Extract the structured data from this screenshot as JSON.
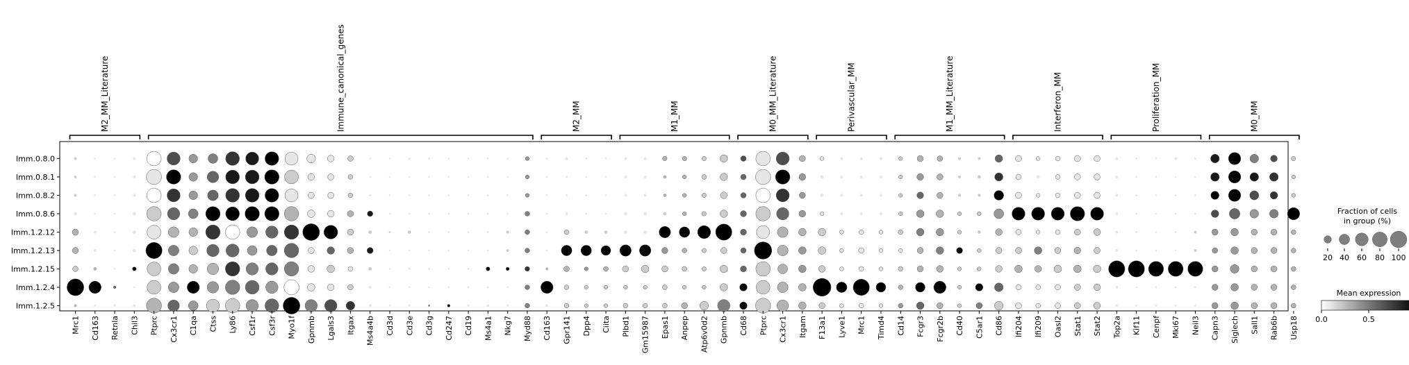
{
  "chart_data": {
    "type": "dotplot",
    "title": "",
    "xlabel": "",
    "ylabel": "",
    "colormap": "Greys",
    "rows": [
      "Imm.0.8.0",
      "Imm.0.8.1",
      "Imm.0.8.2",
      "Imm.0.8.6",
      "Imm.1.2.12",
      "Imm.1.2.13",
      "Imm.1.2.15",
      "Imm.1.2.4",
      "Imm.1.2.5"
    ],
    "genes": [
      "Mrc1",
      "Cd163",
      "Retnla",
      "Chil3",
      "Ptprc",
      "Cx3cr1",
      "C1qa",
      "Ctss",
      "Ly86",
      "Csf1r",
      "Csf3r",
      "Myo1f",
      "Gpnmb",
      "Lgals3",
      "Itgax",
      "Ms4a4b",
      "Cd3d",
      "Cd3e",
      "Cd3g",
      "Cd247",
      "Cd19",
      "Ms4a1",
      "Nkg7",
      "Myd88",
      "Cd163",
      "Gpr141",
      "Dpp4",
      "Ciita",
      "Plbd1",
      "Gm15987",
      "Epas1",
      "Anpep",
      "Atp6v0d2",
      "Gpnmb",
      "Cd68",
      "Ptprc",
      "Cx3cr1",
      "Itgam",
      "F13a1",
      "Lyve1",
      "Mrc1",
      "Timd4",
      "Cd14",
      "Fcgr3",
      "Fcgr2b",
      "Cd40",
      "C5ar1",
      "Cd86",
      "Ifi204",
      "Ifi209",
      "Oasl2",
      "Stat1",
      "Stat2",
      "Top2a",
      "Kif11",
      "Cenpf",
      "Mki67",
      "Neil3",
      "Capn3",
      "Siglech",
      "Sall1",
      "Rab6b",
      "Usp18"
    ],
    "groups": [
      {
        "name": "M2_MM_Literature",
        "start": 0,
        "end": 3
      },
      {
        "name": "Immune_canonical_genes",
        "start": 4,
        "end": 23
      },
      {
        "name": "M2_MM",
        "start": 24,
        "end": 27
      },
      {
        "name": "M1_MM",
        "start": 28,
        "end": 33
      },
      {
        "name": "M0_MM_Literature",
        "start": 34,
        "end": 37
      },
      {
        "name": "Perivascular_MM",
        "start": 38,
        "end": 41
      },
      {
        "name": "M1_MM_Literature",
        "start": 42,
        "end": 47
      },
      {
        "name": "Interferon_MM",
        "start": 48,
        "end": 52
      },
      {
        "name": "Proliferation_MM",
        "start": 53,
        "end": 57
      },
      {
        "name": "M0_MM",
        "start": 58,
        "end": 62
      }
    ],
    "fraction": [
      [
        2,
        1,
        1,
        2,
        55,
        45,
        20,
        25,
        50,
        45,
        50,
        45,
        20,
        12,
        8,
        1,
        1,
        1,
        1,
        1,
        1,
        1,
        1,
        4,
        1,
        2,
        1,
        1,
        2,
        2,
        5,
        5,
        5,
        15,
        8,
        55,
        45,
        10,
        4,
        2,
        2,
        2,
        4,
        10,
        8,
        2,
        2,
        15,
        10,
        4,
        6,
        10,
        10,
        2,
        1,
        1,
        2,
        1,
        20,
        40,
        20,
        12,
        5
      ],
      [
        2,
        1,
        1,
        2,
        60,
        55,
        20,
        35,
        50,
        50,
        55,
        50,
        12,
        10,
        6,
        1,
        1,
        1,
        1,
        1,
        1,
        1,
        1,
        4,
        1,
        1,
        1,
        1,
        2,
        2,
        3,
        4,
        6,
        14,
        8,
        60,
        55,
        12,
        3,
        2,
        2,
        2,
        4,
        12,
        10,
        2,
        3,
        18,
        8,
        3,
        6,
        10,
        10,
        2,
        1,
        1,
        1,
        1,
        20,
        40,
        20,
        20,
        4
      ],
      [
        2,
        1,
        1,
        2,
        55,
        45,
        20,
        30,
        50,
        50,
        50,
        45,
        10,
        10,
        6,
        1,
        1,
        1,
        1,
        1,
        1,
        1,
        1,
        4,
        1,
        1,
        1,
        1,
        2,
        2,
        3,
        4,
        5,
        12,
        8,
        55,
        45,
        10,
        3,
        2,
        2,
        2,
        4,
        12,
        10,
        2,
        2,
        25,
        10,
        4,
        6,
        10,
        10,
        2,
        1,
        1,
        1,
        1,
        18,
        40,
        22,
        15,
        4
      ],
      [
        3,
        1,
        1,
        3,
        55,
        40,
        25,
        55,
        50,
        55,
        55,
        55,
        15,
        12,
        10,
        8,
        1,
        1,
        1,
        1,
        1,
        1,
        1,
        6,
        1,
        2,
        1,
        1,
        3,
        3,
        3,
        4,
        5,
        15,
        10,
        55,
        40,
        12,
        4,
        2,
        2,
        2,
        4,
        15,
        15,
        4,
        4,
        25,
        45,
        45,
        45,
        55,
        45,
        2,
        1,
        1,
        1,
        1,
        15,
        30,
        20,
        20,
        40
      ],
      [
        10,
        2,
        1,
        3,
        50,
        30,
        20,
        55,
        55,
        30,
        40,
        55,
        75,
        50,
        10,
        3,
        1,
        3,
        1,
        1,
        1,
        1,
        2,
        6,
        1,
        6,
        3,
        3,
        3,
        3,
        35,
        30,
        45,
        70,
        10,
        45,
        30,
        15,
        15,
        4,
        6,
        4,
        6,
        15,
        15,
        4,
        3,
        12,
        8,
        4,
        6,
        10,
        12,
        2,
        1,
        1,
        1,
        2,
        10,
        15,
        10,
        10,
        6
      ],
      [
        10,
        2,
        1,
        3,
        70,
        30,
        20,
        40,
        45,
        25,
        30,
        55,
        10,
        15,
        10,
        10,
        1,
        1,
        1,
        1,
        1,
        1,
        2,
        6,
        1,
        30,
        30,
        25,
        35,
        35,
        10,
        6,
        5,
        10,
        8,
        80,
        30,
        15,
        15,
        4,
        8,
        4,
        4,
        10,
        15,
        10,
        4,
        10,
        10,
        15,
        10,
        12,
        10,
        2,
        1,
        1,
        1,
        2,
        8,
        15,
        10,
        10,
        6
      ],
      [
        8,
        3,
        1,
        4,
        50,
        30,
        20,
        35,
        55,
        40,
        40,
        55,
        12,
        15,
        6,
        3,
        1,
        1,
        1,
        1,
        1,
        4,
        3,
        6,
        2,
        8,
        4,
        6,
        10,
        15,
        10,
        6,
        5,
        15,
        10,
        55,
        25,
        15,
        12,
        4,
        6,
        4,
        6,
        10,
        12,
        4,
        4,
        12,
        15,
        12,
        15,
        15,
        15,
        70,
        70,
        60,
        60,
        60,
        10,
        20,
        10,
        10,
        6
      ],
      [
        75,
        40,
        2,
        1,
        50,
        30,
        40,
        35,
        55,
        50,
        40,
        60,
        15,
        12,
        8,
        2,
        1,
        1,
        1,
        1,
        1,
        1,
        1,
        6,
        40,
        6,
        4,
        4,
        4,
        4,
        6,
        4,
        4,
        15,
        15,
        50,
        30,
        15,
        85,
        30,
        70,
        25,
        6,
        25,
        40,
        4,
        15,
        20,
        8,
        6,
        8,
        10,
        12,
        2,
        1,
        1,
        1,
        1,
        10,
        15,
        10,
        10,
        6
      ],
      [
        2,
        1,
        1,
        2,
        60,
        35,
        25,
        45,
        55,
        40,
        50,
        75,
        40,
        40,
        20,
        2,
        1,
        1,
        1,
        2,
        1,
        2,
        1,
        6,
        2,
        6,
        4,
        4,
        6,
        6,
        6,
        10,
        20,
        40,
        15,
        60,
        35,
        15,
        10,
        4,
        6,
        4,
        6,
        15,
        10,
        4,
        10,
        20,
        10,
        6,
        8,
        10,
        12,
        2,
        1,
        1,
        1,
        1,
        10,
        15,
        10,
        10,
        6
      ]
    ],
    "mean_expression": [
      [
        0.2,
        0.1,
        0.1,
        0.1,
        0.0,
        0.7,
        0.4,
        0.5,
        0.8,
        0.9,
        1.0,
        0.1,
        0.1,
        0.1,
        0.2,
        0.1,
        0.1,
        0.1,
        0.1,
        0.1,
        0.1,
        0.1,
        0.1,
        0.4,
        0.1,
        0.1,
        0.1,
        0.1,
        0.1,
        0.1,
        0.3,
        0.3,
        0.2,
        0.2,
        0.7,
        0.1,
        0.7,
        0.3,
        0.1,
        0.1,
        0.1,
        0.1,
        0.2,
        0.3,
        0.3,
        0.2,
        0.2,
        0.6,
        0.1,
        0.1,
        0.1,
        0.1,
        0.1,
        0.1,
        0.1,
        0.1,
        0.1,
        0.1,
        0.9,
        1.0,
        0.5,
        0.7,
        0.2
      ],
      [
        0.2,
        0.1,
        0.1,
        0.1,
        0.1,
        1.0,
        0.4,
        0.6,
        0.9,
        0.9,
        1.0,
        0.2,
        0.1,
        0.1,
        0.2,
        0.1,
        0.1,
        0.1,
        0.1,
        0.1,
        0.1,
        0.1,
        0.1,
        0.4,
        0.1,
        0.1,
        0.1,
        0.1,
        0.1,
        0.1,
        0.3,
        0.3,
        0.2,
        0.2,
        0.6,
        0.1,
        1.0,
        0.4,
        0.1,
        0.1,
        0.1,
        0.1,
        0.2,
        0.4,
        0.3,
        0.2,
        0.2,
        0.8,
        0.1,
        0.1,
        0.1,
        0.1,
        0.1,
        0.1,
        0.1,
        0.1,
        0.1,
        0.1,
        0.9,
        1.0,
        0.9,
        0.8,
        0.2
      ],
      [
        0.2,
        0.1,
        0.1,
        0.1,
        0.0,
        0.8,
        0.4,
        0.6,
        0.8,
        0.9,
        1.0,
        0.1,
        0.1,
        0.1,
        0.2,
        0.1,
        0.1,
        0.1,
        0.1,
        0.1,
        0.1,
        0.1,
        0.1,
        0.4,
        0.1,
        0.1,
        0.1,
        0.1,
        0.1,
        0.1,
        0.3,
        0.3,
        0.2,
        0.2,
        0.6,
        0.0,
        0.8,
        0.4,
        0.1,
        0.1,
        0.1,
        0.1,
        0.2,
        0.6,
        0.3,
        0.2,
        0.2,
        1.0,
        0.1,
        0.1,
        0.1,
        0.1,
        0.1,
        0.1,
        0.1,
        0.1,
        0.1,
        0.1,
        1.0,
        1.0,
        0.7,
        0.8,
        0.2
      ],
      [
        0.1,
        0.1,
        0.1,
        0.1,
        0.2,
        0.6,
        0.5,
        1.0,
        1.0,
        1.0,
        1.0,
        0.3,
        0.1,
        0.1,
        0.3,
        0.9,
        0.1,
        0.1,
        0.1,
        0.1,
        0.1,
        0.1,
        0.1,
        0.5,
        0.1,
        0.1,
        0.1,
        0.1,
        0.1,
        0.1,
        0.2,
        0.3,
        0.2,
        0.2,
        0.6,
        0.2,
        0.6,
        0.4,
        0.1,
        0.1,
        0.1,
        0.1,
        0.2,
        0.4,
        0.3,
        0.2,
        0.2,
        0.4,
        1.0,
        1.0,
        1.0,
        1.0,
        1.0,
        0.1,
        0.1,
        0.1,
        0.1,
        0.1,
        0.7,
        0.6,
        0.4,
        0.5,
        1.0
      ],
      [
        0.3,
        0.1,
        0.1,
        0.1,
        0.1,
        0.3,
        0.3,
        0.8,
        0.0,
        0.4,
        0.6,
        0.8,
        1.0,
        1.0,
        0.2,
        0.2,
        0.2,
        0.2,
        0.1,
        0.1,
        0.1,
        0.1,
        0.2,
        0.5,
        0.1,
        0.2,
        0.2,
        0.2,
        0.1,
        0.1,
        1.0,
        1.0,
        1.0,
        1.0,
        0.6,
        0.1,
        0.3,
        0.3,
        0.2,
        0.1,
        0.1,
        0.1,
        0.2,
        0.5,
        0.4,
        0.2,
        0.2,
        0.3,
        0.1,
        0.1,
        0.1,
        0.2,
        0.2,
        0.1,
        0.1,
        0.1,
        0.1,
        0.2,
        0.4,
        0.4,
        0.3,
        0.3,
        0.3
      ],
      [
        0.3,
        0.1,
        0.1,
        0.1,
        1.0,
        0.5,
        0.2,
        0.6,
        0.6,
        0.4,
        0.6,
        0.6,
        0.1,
        0.6,
        0.3,
        0.9,
        0.1,
        0.1,
        0.1,
        0.1,
        0.1,
        0.1,
        0.2,
        0.5,
        0.1,
        1.0,
        1.0,
        1.0,
        1.0,
        1.0,
        0.4,
        0.3,
        0.2,
        0.2,
        0.6,
        1.0,
        0.3,
        0.4,
        0.2,
        0.1,
        0.1,
        0.1,
        0.1,
        0.3,
        0.5,
        1.0,
        0.2,
        0.2,
        0.2,
        0.5,
        0.2,
        0.3,
        0.2,
        0.1,
        0.1,
        0.1,
        0.1,
        0.2,
        0.4,
        0.4,
        0.3,
        0.3,
        0.3
      ],
      [
        0.2,
        0.3,
        0.1,
        1.0,
        0.2,
        0.5,
        0.3,
        0.3,
        0.8,
        0.5,
        0.6,
        0.5,
        0.1,
        0.2,
        0.1,
        0.2,
        0.1,
        0.1,
        0.1,
        0.1,
        0.1,
        1.0,
        1.0,
        0.8,
        0.3,
        0.3,
        0.4,
        0.3,
        0.2,
        0.2,
        0.2,
        0.2,
        0.2,
        0.2,
        0.6,
        0.2,
        0.3,
        0.4,
        0.2,
        0.1,
        0.1,
        0.1,
        0.2,
        0.3,
        0.3,
        0.2,
        0.2,
        0.2,
        0.3,
        0.3,
        0.2,
        0.3,
        0.2,
        1.0,
        1.0,
        1.0,
        1.0,
        1.0,
        0.4,
        0.4,
        0.3,
        0.3,
        0.3
      ],
      [
        1.0,
        1.0,
        0.6,
        0.1,
        0.2,
        0.4,
        1.0,
        0.4,
        0.5,
        0.6,
        0.4,
        0.0,
        0.1,
        0.1,
        0.2,
        0.1,
        0.1,
        0.1,
        0.1,
        0.1,
        0.1,
        0.1,
        0.1,
        0.5,
        1.0,
        0.2,
        0.2,
        0.2,
        0.2,
        0.2,
        0.2,
        0.2,
        0.2,
        0.2,
        1.0,
        0.2,
        0.3,
        0.3,
        1.0,
        1.0,
        1.0,
        1.0,
        0.3,
        1.0,
        1.0,
        0.2,
        1.0,
        0.6,
        0.1,
        0.1,
        0.1,
        0.2,
        0.2,
        0.1,
        0.1,
        0.1,
        0.1,
        0.1,
        0.4,
        0.4,
        0.3,
        0.3,
        0.3
      ],
      [
        0.3,
        0.1,
        0.1,
        0.1,
        0.3,
        0.6,
        0.4,
        0.2,
        0.2,
        0.4,
        0.6,
        1.0,
        0.5,
        0.7,
        0.8,
        0.1,
        0.1,
        0.1,
        0.5,
        1.0,
        0.1,
        0.1,
        0.1,
        0.5,
        0.1,
        0.2,
        0.2,
        0.2,
        0.2,
        0.2,
        0.2,
        0.3,
        0.2,
        0.5,
        1.0,
        0.2,
        0.3,
        0.3,
        0.2,
        0.1,
        0.1,
        0.1,
        0.4,
        0.6,
        0.3,
        0.2,
        0.5,
        0.2,
        0.1,
        0.1,
        0.1,
        0.2,
        0.2,
        0.1,
        0.1,
        0.1,
        0.1,
        0.1,
        0.4,
        0.4,
        0.3,
        0.3,
        0.3
      ]
    ],
    "size_legend": {
      "title_line1": "Fraction of cells",
      "title_line2": "in group (%)",
      "values": [
        20,
        40,
        60,
        80,
        100
      ]
    },
    "color_legend": {
      "title": "Mean expression",
      "ticks": [
        "0.0",
        "0.5",
        "1.0"
      ],
      "range": [
        0,
        1
      ]
    }
  }
}
